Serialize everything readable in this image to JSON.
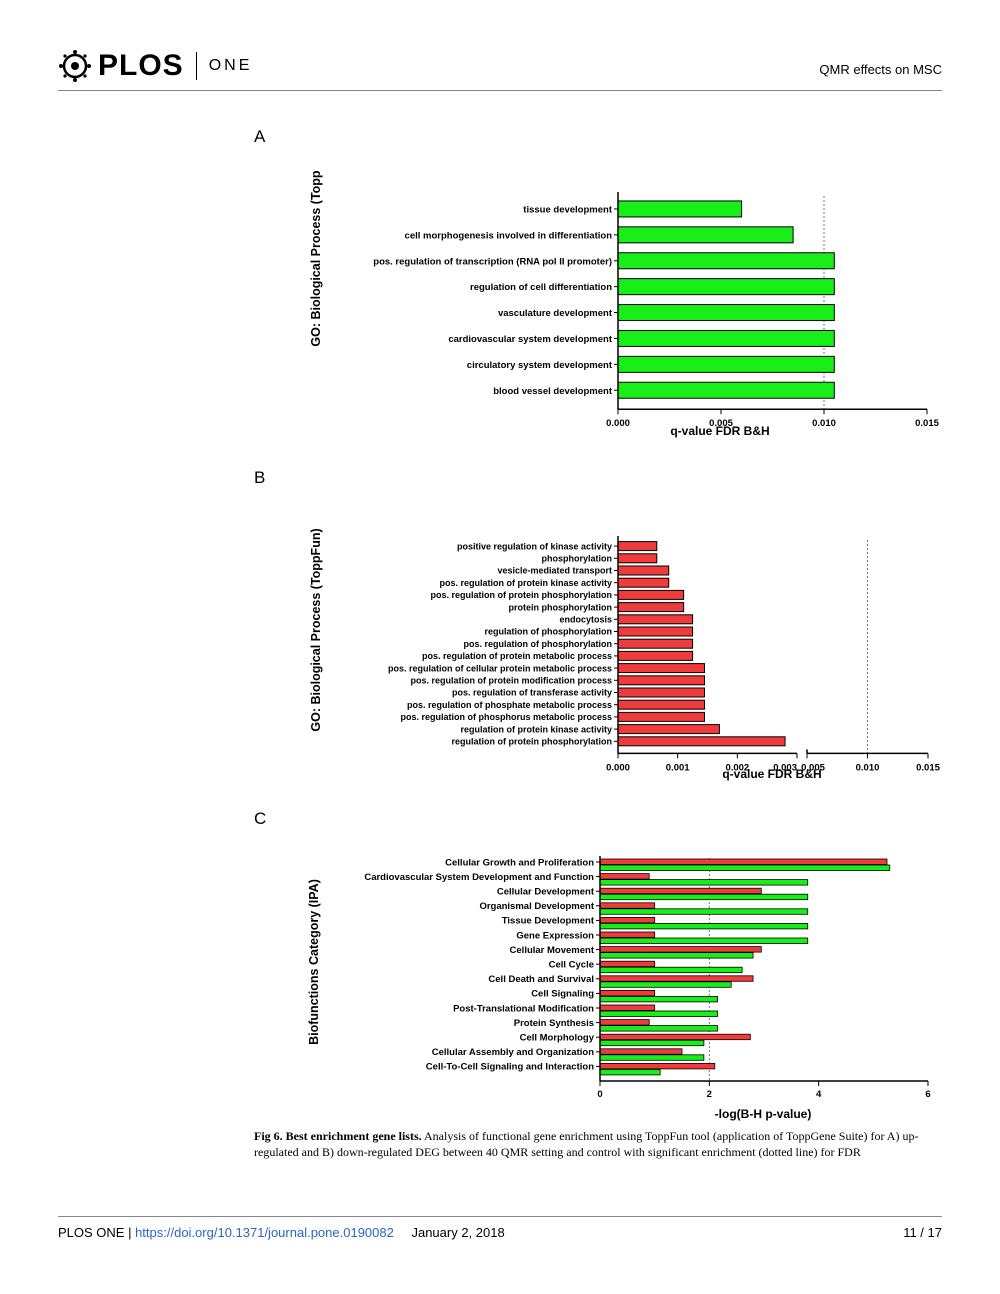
{
  "header": {
    "logo_text": "PLOS",
    "logo_suffix": "ONE",
    "running_title": "QMR effects on MSC"
  },
  "panels": {
    "a_label": "A",
    "b_label": "B",
    "c_label": "C"
  },
  "chart_data": [
    {
      "type": "bar",
      "orientation": "horizontal",
      "ylabel": "GO: Biological Process (ToppFun)",
      "xlabel": "q-value FDR B&H",
      "xlim": [
        0,
        0.015
      ],
      "xticks": [
        "0.000",
        "0.005",
        "0.010",
        "0.015"
      ],
      "threshold_line": 0.01,
      "color": "#18ef18",
      "categories": [
        "tissue development",
        "cell morphogenesis involved in differentiation",
        "pos. regulation of transcription (RNA pol II promoter)",
        "regulation of cell differentiation",
        "vasculature development",
        "cardiovascular system development",
        "circulatory system development",
        "blood vessel development"
      ],
      "values": [
        0.006,
        0.0085,
        0.0105,
        0.0105,
        0.0105,
        0.0105,
        0.0105,
        0.0105
      ]
    },
    {
      "type": "bar",
      "orientation": "horizontal",
      "ylabel": "GO: Biological Process (ToppFun)",
      "xlabel": "q-value FDR B&H",
      "xticks_left": [
        "0.000",
        "0.001",
        "0.002",
        "0.003"
      ],
      "xticks_right": [
        "0.005",
        "0.010",
        "0.015"
      ],
      "broken_axis": true,
      "threshold_line": 0.01,
      "color": "#ef3b3b",
      "categories": [
        "positive regulation of kinase activity",
        "phosphorylation",
        "vesicle-mediated transport",
        "pos. regulation of protein kinase activity",
        "pos. regulation of protein phosphorylation",
        "protein phosphorylation",
        "endocytosis",
        "regulation of phosphorylation",
        "pos. regulation of phosphorylation",
        "pos. regulation of protein metabolic process",
        "pos. regulation of cellular protein metabolic process",
        "pos. regulation of protein modification process",
        "pos. regulation of transferase activity",
        "pos. regulation of phosphate metabolic process",
        "pos. regulation of phosphorus metabolic process",
        "regulation of protein kinase activity",
        "regulation of protein phosphorylation"
      ],
      "values": [
        0.00065,
        0.00065,
        0.00085,
        0.00085,
        0.0011,
        0.0011,
        0.00125,
        0.00125,
        0.00125,
        0.00125,
        0.00145,
        0.00145,
        0.00145,
        0.00145,
        0.00145,
        0.0017,
        0.0028
      ]
    },
    {
      "type": "bar",
      "orientation": "horizontal",
      "ylabel": "Biofunctions Category (IPA)",
      "xlabel": "-log(B-H p-value)",
      "xlim": [
        0,
        6
      ],
      "xticks": [
        "0",
        "2",
        "4",
        "6"
      ],
      "threshold_line": 2,
      "categories": [
        "Cellular Growth and Proliferation",
        "Cardiovascular System Development and Function",
        "Cellular Development",
        "Organismal Development",
        "Tissue Development",
        "Gene Expression",
        "Cellular Movement",
        "Cell Cycle",
        "Cell Death and Survival",
        "Cell Signaling",
        "Post-Translational Modification",
        "Protein Synthesis",
        "Cell Morphology",
        "Cellular Assembly and Organization",
        "Cell-To-Cell Signaling and Interaction"
      ],
      "series": [
        {
          "color": "#ef3b3b",
          "values": [
            5.25,
            0.9,
            2.95,
            1.0,
            1.0,
            1.0,
            2.95,
            1.0,
            2.8,
            1.0,
            1.0,
            0.9,
            2.75,
            1.5,
            2.1
          ]
        },
        {
          "color": "#18ef18",
          "values": [
            5.3,
            3.8,
            3.8,
            3.8,
            3.8,
            3.8,
            2.8,
            2.6,
            2.4,
            2.15,
            2.15,
            2.15,
            1.9,
            1.9,
            1.1
          ]
        }
      ]
    }
  ],
  "caption": {
    "title": "Fig 6. Best enrichment gene lists.",
    "text": " Analysis of functional gene enrichment using ToppFun tool (application of ToppGene Suite) for A) up-regulated and B) down-regulated DEG between 40 QMR setting and control with significant enrichment (dotted line) for FDR"
  },
  "footer": {
    "journal": "PLOS ONE | ",
    "doi": "https://doi.org/10.1371/journal.pone.0190082",
    "date": "January 2, 2018",
    "page": "11 / 17"
  }
}
